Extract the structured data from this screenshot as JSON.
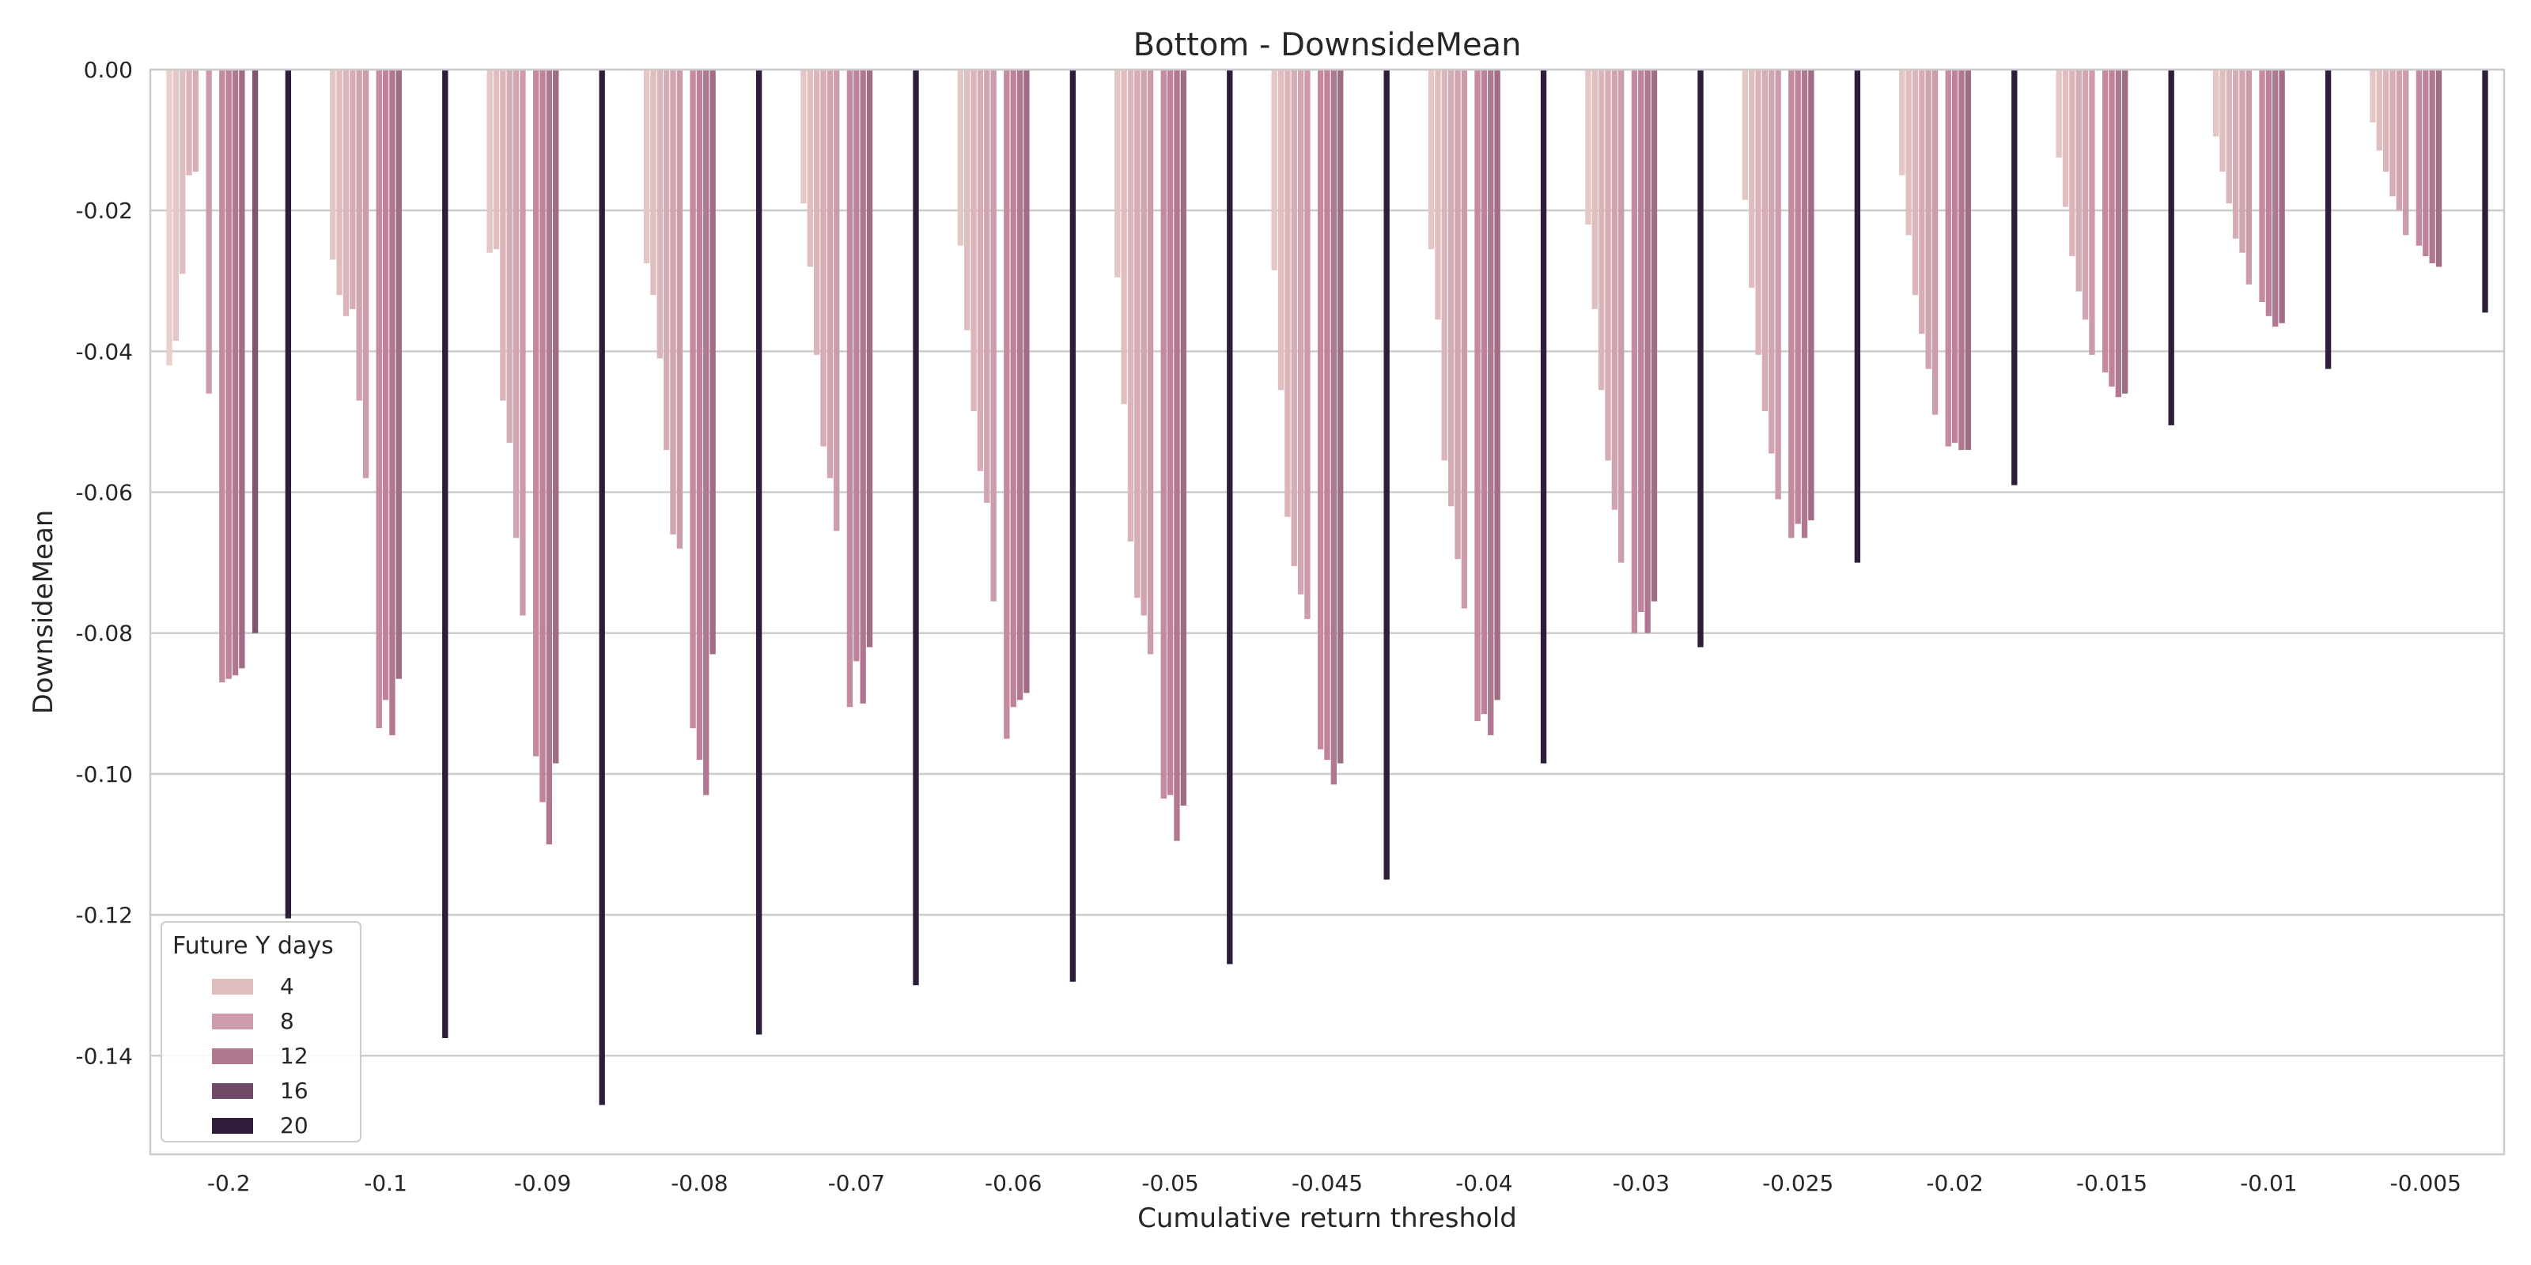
{
  "chart_data": {
    "type": "bar",
    "title": "Bottom - DownsideMean",
    "xlabel": "Cumulative return threshold",
    "ylabel": "DownsideMean",
    "ylim": [
      -0.154,
      0.0
    ],
    "yticks": [
      0.0,
      -0.02,
      -0.04,
      -0.06,
      -0.08,
      -0.1,
      -0.12,
      -0.14
    ],
    "ytick_labels": [
      "0.00",
      "-0.02",
      "-0.04",
      "-0.06",
      "-0.08",
      "-0.10",
      "-0.12",
      "-0.14"
    ],
    "grid": true,
    "legend": {
      "title": "Future Y days",
      "placement": "lower-left",
      "entries": [
        "4",
        "8",
        "12",
        "16",
        "20"
      ]
    },
    "categories": [
      "-0.2",
      "-0.1",
      "-0.09",
      "-0.08",
      "-0.07",
      "-0.06",
      "-0.05",
      "-0.045",
      "-0.04",
      "-0.03",
      "-0.025",
      "-0.02",
      "-0.015",
      "-0.01",
      "-0.005"
    ],
    "hue_values": [
      2,
      3,
      4,
      5,
      6,
      7,
      8,
      9,
      10,
      11,
      12,
      13,
      14,
      15,
      16,
      17,
      18,
      19,
      20
    ],
    "hue_min": 2,
    "hue_max": 20,
    "palette_light": "#e8cfc9",
    "palette_mid": "#c0829b",
    "palette_dark": "#2e1e3c",
    "values": [
      [
        -0.042,
        -0.0385,
        -0.029,
        -0.015,
        -0.0145,
        -0.046,
        -0.087,
        -0.0865,
        -0.086,
        -0.085,
        -0.08,
        -0.1205
      ],
      [
        -0.027,
        -0.032,
        -0.035,
        -0.034,
        -0.047,
        -0.058,
        -0.0935,
        -0.0895,
        -0.0945,
        -0.0865,
        -0.1375
      ],
      [
        -0.026,
        -0.0255,
        -0.047,
        -0.053,
        -0.0665,
        -0.0775,
        -0.0975,
        -0.104,
        -0.11,
        -0.0985,
        -0.147
      ],
      [
        -0.0275,
        -0.032,
        -0.041,
        -0.054,
        -0.066,
        -0.068,
        -0.0935,
        -0.098,
        -0.103,
        -0.083,
        -0.137
      ],
      [
        -0.019,
        -0.028,
        -0.0405,
        -0.0535,
        -0.058,
        -0.0655,
        -0.0905,
        -0.084,
        -0.09,
        -0.082,
        -0.13
      ],
      [
        -0.025,
        -0.037,
        -0.0485,
        -0.057,
        -0.0615,
        -0.0755,
        -0.095,
        -0.0905,
        -0.0895,
        -0.0885,
        -0.1295
      ],
      [
        -0.0295,
        -0.0475,
        -0.067,
        -0.075,
        -0.0775,
        -0.083,
        -0.1035,
        -0.103,
        -0.1095,
        -0.1045,
        -0.127
      ],
      [
        -0.0285,
        -0.0455,
        -0.0635,
        -0.0705,
        -0.0745,
        -0.078,
        -0.0965,
        -0.098,
        -0.1015,
        -0.0985,
        -0.115
      ],
      [
        -0.0255,
        -0.0355,
        -0.0555,
        -0.062,
        -0.0695,
        -0.0765,
        -0.0925,
        -0.0915,
        -0.0945,
        -0.0895,
        -0.0985
      ],
      [
        -0.022,
        -0.034,
        -0.0455,
        -0.0555,
        -0.0625,
        -0.07,
        -0.08,
        -0.077,
        -0.08,
        -0.0755,
        -0.082
      ],
      [
        -0.0185,
        -0.031,
        -0.0405,
        -0.0485,
        -0.0545,
        -0.061,
        -0.0665,
        -0.0645,
        -0.0665,
        -0.064,
        -0.07
      ],
      [
        -0.015,
        -0.0235,
        -0.032,
        -0.0375,
        -0.0425,
        -0.049,
        -0.0535,
        -0.053,
        -0.054,
        -0.054,
        -0.059
      ],
      [
        -0.0125,
        -0.0195,
        -0.0265,
        -0.0315,
        -0.0355,
        -0.0405,
        -0.043,
        -0.045,
        -0.0465,
        -0.046,
        -0.0505
      ],
      [
        -0.0095,
        -0.0145,
        -0.019,
        -0.024,
        -0.026,
        -0.0305,
        -0.033,
        -0.035,
        -0.0365,
        -0.036,
        -0.0425
      ],
      [
        -0.0075,
        -0.0115,
        -0.0145,
        -0.018,
        -0.02,
        -0.0235,
        -0.025,
        -0.0265,
        -0.0275,
        -0.028,
        -0.0345
      ]
    ],
    "value_hues": [
      [
        2,
        3,
        4,
        5,
        6,
        8,
        10,
        11,
        12,
        13,
        15,
        20
      ],
      [
        3,
        4,
        5,
        6,
        7,
        8,
        10,
        11,
        12,
        13,
        20
      ],
      [
        3,
        4,
        5,
        6,
        7,
        8,
        10,
        11,
        12,
        13,
        20
      ],
      [
        3,
        4,
        5,
        6,
        7,
        8,
        10,
        11,
        12,
        13,
        20
      ],
      [
        3,
        4,
        5,
        6,
        7,
        8,
        10,
        11,
        12,
        13,
        20
      ],
      [
        3,
        4,
        5,
        6,
        7,
        8,
        10,
        11,
        12,
        13,
        20
      ],
      [
        3,
        4,
        5,
        6,
        7,
        8,
        10,
        11,
        12,
        13,
        20
      ],
      [
        3,
        4,
        5,
        6,
        7,
        8,
        10,
        11,
        12,
        13,
        20
      ],
      [
        3,
        4,
        5,
        6,
        7,
        8,
        10,
        11,
        12,
        13,
        20
      ],
      [
        3,
        4,
        5,
        6,
        7,
        8,
        10,
        11,
        12,
        13,
        20
      ],
      [
        3,
        4,
        5,
        6,
        7,
        8,
        10,
        11,
        12,
        13,
        20
      ],
      [
        3,
        4,
        5,
        6,
        7,
        8,
        10,
        11,
        12,
        13,
        20
      ],
      [
        3,
        4,
        5,
        6,
        7,
        8,
        10,
        11,
        12,
        13,
        20
      ],
      [
        3,
        4,
        5,
        6,
        7,
        8,
        10,
        11,
        12,
        13,
        20
      ],
      [
        3,
        4,
        5,
        6,
        7,
        8,
        10,
        11,
        12,
        13,
        20
      ]
    ]
  }
}
